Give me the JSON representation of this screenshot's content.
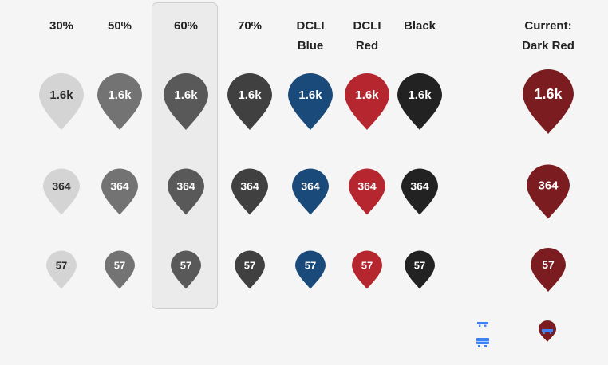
{
  "headers": [
    {
      "line1": "30%",
      "line2": ""
    },
    {
      "line1": "50%",
      "line2": ""
    },
    {
      "line1": "60%",
      "line2": ""
    },
    {
      "line1": "70%",
      "line2": ""
    },
    {
      "line1": "DCLI",
      "line2": "Blue"
    },
    {
      "line1": "DCLI",
      "line2": "Red"
    },
    {
      "line1": "Black",
      "line2": ""
    },
    {
      "line1": "Current:",
      "line2": "Dark Red"
    }
  ],
  "columns": [
    {
      "key": "30",
      "color": "#d4d4d4",
      "text_color": "#2a2a2a"
    },
    {
      "key": "50",
      "color": "#737373",
      "text_color": "#ffffff"
    },
    {
      "key": "60",
      "color": "#595959",
      "text_color": "#ffffff"
    },
    {
      "key": "70",
      "color": "#404040",
      "text_color": "#ffffff"
    },
    {
      "key": "dcli-blue",
      "color": "#1a4a7a",
      "text_color": "#ffffff"
    },
    {
      "key": "dcli-red",
      "color": "#b5262e",
      "text_color": "#ffffff"
    },
    {
      "key": "black",
      "color": "#222222",
      "text_color": "#ffffff"
    },
    {
      "key": "current-dark-red",
      "color": "#7a1c20",
      "text_color": "#ffffff"
    }
  ],
  "rows": [
    {
      "label": "1.6k"
    },
    {
      "label": "364"
    },
    {
      "label": "57"
    }
  ],
  "highlighted_column": "60",
  "legend": {
    "truck_icon": "truck-icon",
    "truck_color": "#3b82f6",
    "marker_color": "#7a1c20"
  }
}
